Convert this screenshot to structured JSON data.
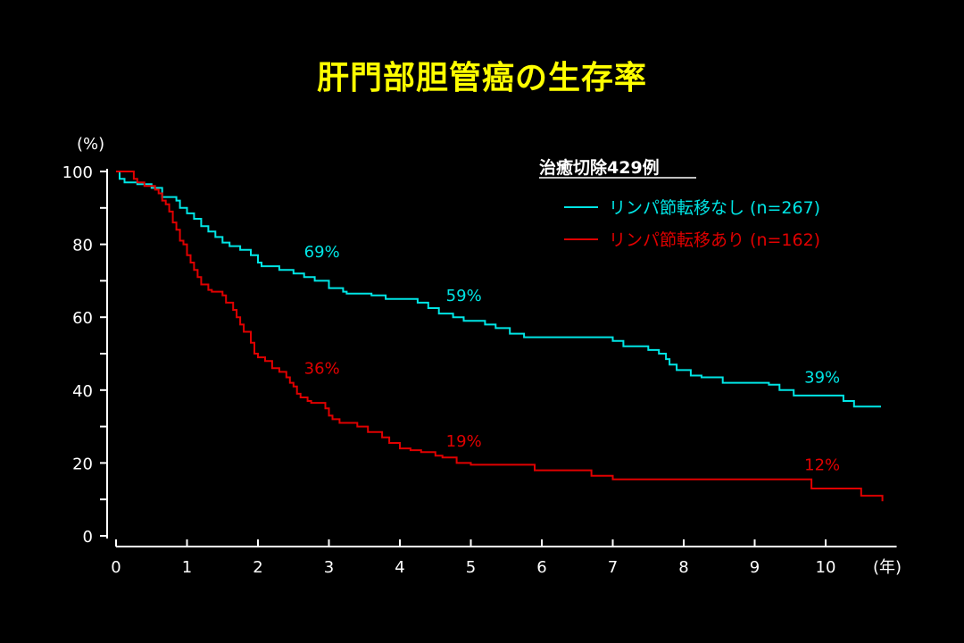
{
  "title": "肝門部胆管癌の生存率",
  "colors": {
    "background": "#000000",
    "title": "#ffff00",
    "axis": "#ffffff",
    "no_node": "#00e5e5",
    "node": "#e00000"
  },
  "chart_data": {
    "type": "line",
    "title": "肝門部胆管癌の生存率",
    "subtitle": "治癒切除429例",
    "xlabel": "(年)",
    "ylabel": "(%)",
    "xlim": [
      0,
      11
    ],
    "ylim": [
      0,
      100
    ],
    "xticks": [
      0,
      1,
      2,
      3,
      4,
      5,
      6,
      7,
      8,
      9,
      10
    ],
    "yticks": [
      0,
      20,
      40,
      60,
      80,
      100
    ],
    "grid": false,
    "legend_position": "top-right",
    "series": [
      {
        "name": "リンパ節転移なし (n=267)",
        "color": "#00e5e5",
        "step": true,
        "points": [
          [
            0,
            100
          ],
          [
            0.05,
            98
          ],
          [
            0.12,
            97
          ],
          [
            0.3,
            96.5
          ],
          [
            0.5,
            95.5
          ],
          [
            0.65,
            93
          ],
          [
            0.85,
            92
          ],
          [
            0.9,
            90
          ],
          [
            1.0,
            88.5
          ],
          [
            1.1,
            87
          ],
          [
            1.2,
            85
          ],
          [
            1.3,
            83.5
          ],
          [
            1.4,
            82
          ],
          [
            1.5,
            80.5
          ],
          [
            1.6,
            79.5
          ],
          [
            1.75,
            78.5
          ],
          [
            1.9,
            77
          ],
          [
            2.0,
            75
          ],
          [
            2.05,
            74
          ],
          [
            2.3,
            73
          ],
          [
            2.5,
            72
          ],
          [
            2.65,
            71
          ],
          [
            2.8,
            70
          ],
          [
            3.0,
            68
          ],
          [
            3.2,
            67
          ],
          [
            3.25,
            66.5
          ],
          [
            3.6,
            66
          ],
          [
            3.8,
            65
          ],
          [
            4.25,
            64
          ],
          [
            4.4,
            62.5
          ],
          [
            4.55,
            61
          ],
          [
            4.75,
            60
          ],
          [
            4.9,
            59
          ],
          [
            5.2,
            58
          ],
          [
            5.35,
            57
          ],
          [
            5.55,
            55.5
          ],
          [
            5.75,
            54.5
          ],
          [
            7.0,
            53.5
          ],
          [
            7.15,
            52
          ],
          [
            7.5,
            51
          ],
          [
            7.65,
            50
          ],
          [
            7.75,
            48.5
          ],
          [
            7.8,
            47
          ],
          [
            7.9,
            45.5
          ],
          [
            8.1,
            44
          ],
          [
            8.25,
            43.5
          ],
          [
            8.55,
            42
          ],
          [
            9.2,
            41.5
          ],
          [
            9.35,
            40
          ],
          [
            9.55,
            38.5
          ],
          [
            10.25,
            37
          ],
          [
            10.4,
            35.5
          ],
          [
            10.78,
            35.5
          ]
        ]
      },
      {
        "name": "リンパ節転移あり (n=162)",
        "color": "#e00000",
        "step": true,
        "points": [
          [
            0,
            100
          ],
          [
            0.25,
            98
          ],
          [
            0.3,
            97
          ],
          [
            0.4,
            96
          ],
          [
            0.55,
            95
          ],
          [
            0.6,
            94
          ],
          [
            0.65,
            92
          ],
          [
            0.7,
            91
          ],
          [
            0.75,
            89
          ],
          [
            0.8,
            86
          ],
          [
            0.85,
            84
          ],
          [
            0.9,
            81
          ],
          [
            0.95,
            80
          ],
          [
            1.0,
            77
          ],
          [
            1.05,
            75
          ],
          [
            1.1,
            73
          ],
          [
            1.15,
            71
          ],
          [
            1.2,
            69
          ],
          [
            1.3,
            67.5
          ],
          [
            1.35,
            67
          ],
          [
            1.5,
            66
          ],
          [
            1.55,
            64
          ],
          [
            1.65,
            62
          ],
          [
            1.7,
            60
          ],
          [
            1.75,
            58
          ],
          [
            1.8,
            56
          ],
          [
            1.9,
            53
          ],
          [
            1.95,
            50
          ],
          [
            2.0,
            49
          ],
          [
            2.1,
            48
          ],
          [
            2.2,
            46
          ],
          [
            2.3,
            45
          ],
          [
            2.4,
            43.5
          ],
          [
            2.45,
            42
          ],
          [
            2.5,
            41
          ],
          [
            2.55,
            39
          ],
          [
            2.6,
            38
          ],
          [
            2.7,
            37
          ],
          [
            2.75,
            36.5
          ],
          [
            2.95,
            35
          ],
          [
            3.0,
            33
          ],
          [
            3.05,
            32
          ],
          [
            3.15,
            31
          ],
          [
            3.4,
            30
          ],
          [
            3.55,
            28.5
          ],
          [
            3.75,
            27
          ],
          [
            3.85,
            25.5
          ],
          [
            4.0,
            24
          ],
          [
            4.15,
            23.5
          ],
          [
            4.3,
            23
          ],
          [
            4.5,
            22
          ],
          [
            4.6,
            21.5
          ],
          [
            4.8,
            20
          ],
          [
            5.0,
            19.5
          ],
          [
            5.2,
            19.5
          ],
          [
            5.9,
            18
          ],
          [
            6.7,
            16.5
          ],
          [
            7.0,
            15.5
          ],
          [
            7.5,
            15.5
          ],
          [
            8.5,
            15.5
          ],
          [
            9.8,
            13
          ],
          [
            10.5,
            11
          ],
          [
            10.8,
            9.5
          ]
        ]
      }
    ],
    "annotations": [
      {
        "text": "69%",
        "series": 0,
        "x": 2.65,
        "y": 76.5
      },
      {
        "text": "59%",
        "series": 0,
        "x": 4.65,
        "y": 64.5
      },
      {
        "text": "39%",
        "series": 0,
        "x": 9.7,
        "y": 42
      },
      {
        "text": "36%",
        "series": 1,
        "x": 2.65,
        "y": 44.5
      },
      {
        "text": "19%",
        "series": 1,
        "x": 4.65,
        "y": 24.5
      },
      {
        "text": "12%",
        "series": 1,
        "x": 9.7,
        "y": 18
      }
    ]
  }
}
